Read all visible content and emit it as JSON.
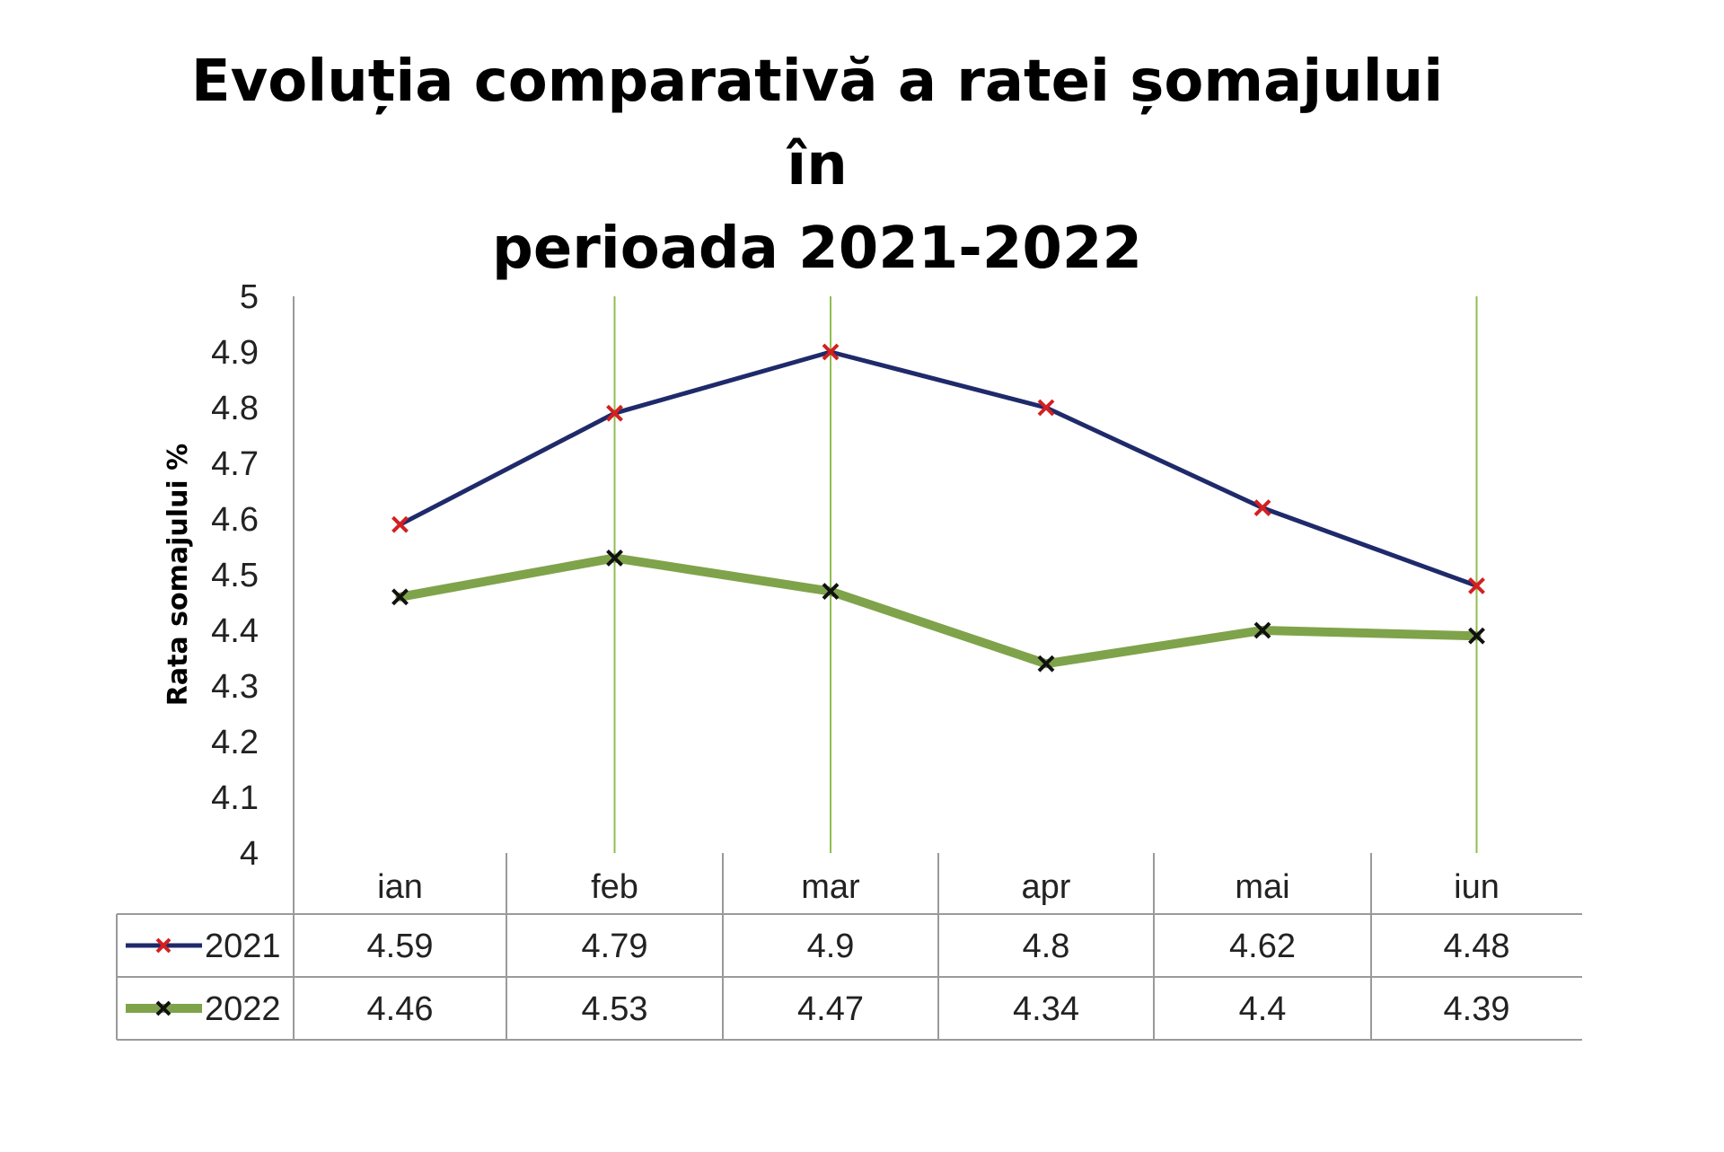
{
  "chart_data": {
    "type": "line",
    "title_line1": "Evoluția comparativă a ratei șomajului în",
    "title_line2": "perioada 2021-2022",
    "ylabel": "Rata somajului %",
    "xlabel": "",
    "ylim": [
      4,
      5
    ],
    "yticks": [
      "5",
      "4.9",
      "4.8",
      "4.7",
      "4.6",
      "4.5",
      "4.4",
      "4.3",
      "4.2",
      "4.1",
      "4"
    ],
    "categories": [
      "ian",
      "feb",
      "mar",
      "apr",
      "mai",
      "iun"
    ],
    "series": [
      {
        "name": "2021",
        "values": [
          4.59,
          4.79,
          4.9,
          4.8,
          4.62,
          4.48
        ],
        "labels": [
          "4.59",
          "4.79",
          "4.9",
          "4.8",
          "4.62",
          "4.48"
        ],
        "color": "#1f2a6b",
        "marker_color": "#d42020"
      },
      {
        "name": "2022",
        "values": [
          4.46,
          4.53,
          4.47,
          4.34,
          4.4,
          4.39
        ],
        "labels": [
          "4.46",
          "4.53",
          "4.47",
          "4.34",
          "4.4",
          "4.39"
        ],
        "color": "#7fa34a",
        "marker_color": "#111111"
      }
    ],
    "vertical_gridline_color": "#8fbf4f",
    "data_table": true
  }
}
